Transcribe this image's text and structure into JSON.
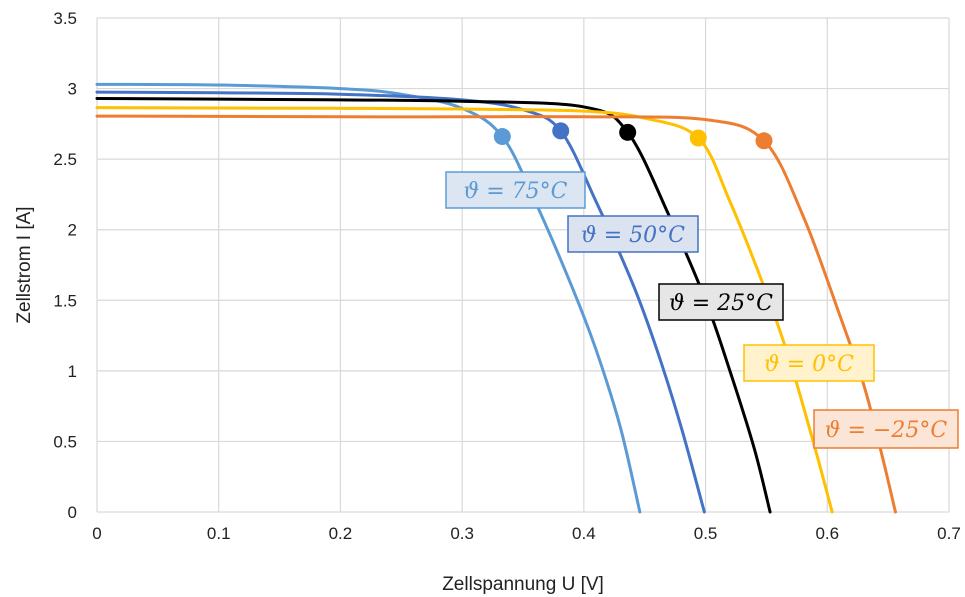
{
  "chart_data": {
    "type": "line",
    "xlabel": "Zellspannung U [V]",
    "ylabel": "Zellstrom I [A]",
    "xlim": [
      0,
      0.7
    ],
    "ylim": [
      0,
      3.5
    ],
    "x_ticks": [
      "0",
      "0.1",
      "0.2",
      "0.3",
      "0.4",
      "0.5",
      "0.6",
      "0.7"
    ],
    "y_ticks": [
      "0",
      "0.5",
      "1",
      "1.5",
      "2",
      "2.5",
      "3",
      "3.5"
    ],
    "grid": true,
    "legend": "none",
    "series": [
      {
        "name": "ϑ = 75°C",
        "color": "#5B9BD5",
        "label_bg": "#DCE6F2",
        "points": [
          [
            0,
            3.03
          ],
          [
            0.1,
            3.025
          ],
          [
            0.2,
            3.0
          ],
          [
            0.25,
            2.96
          ],
          [
            0.3,
            2.86
          ],
          [
            0.333,
            2.66
          ],
          [
            0.36,
            2.2
          ],
          [
            0.39,
            1.6
          ],
          [
            0.41,
            1.15
          ],
          [
            0.43,
            0.6
          ],
          [
            0.446,
            0
          ]
        ],
        "mpp": [
          0.333,
          2.66
        ]
      },
      {
        "name": "ϑ = 50°C",
        "color": "#4472C4",
        "label_bg": "#DCE3F0",
        "points": [
          [
            0,
            2.975
          ],
          [
            0.1,
            2.97
          ],
          [
            0.2,
            2.96
          ],
          [
            0.3,
            2.92
          ],
          [
            0.35,
            2.85
          ],
          [
            0.381,
            2.7
          ],
          [
            0.41,
            2.2
          ],
          [
            0.44,
            1.62
          ],
          [
            0.46,
            1.15
          ],
          [
            0.48,
            0.6
          ],
          [
            0.499,
            0
          ]
        ],
        "mpp": [
          0.381,
          2.7
        ]
      },
      {
        "name": "ϑ = 25°C",
        "color": "#000000",
        "label_bg": "#E6E6E6",
        "points": [
          [
            0,
            2.93
          ],
          [
            0.1,
            2.925
          ],
          [
            0.2,
            2.92
          ],
          [
            0.3,
            2.91
          ],
          [
            0.4,
            2.87
          ],
          [
            0.436,
            2.69
          ],
          [
            0.47,
            2.1
          ],
          [
            0.5,
            1.5
          ],
          [
            0.52,
            1.0
          ],
          [
            0.54,
            0.45
          ],
          [
            0.553,
            0
          ]
        ],
        "mpp": [
          0.436,
          2.69
        ]
      },
      {
        "name": "ϑ = 0°C",
        "color": "#FFC000",
        "label_bg": "#FFF2CC",
        "points": [
          [
            0,
            2.865
          ],
          [
            0.1,
            2.862
          ],
          [
            0.2,
            2.86
          ],
          [
            0.3,
            2.855
          ],
          [
            0.4,
            2.84
          ],
          [
            0.45,
            2.79
          ],
          [
            0.494,
            2.65
          ],
          [
            0.52,
            2.2
          ],
          [
            0.55,
            1.55
          ],
          [
            0.57,
            1.05
          ],
          [
            0.59,
            0.45
          ],
          [
            0.604,
            0
          ]
        ],
        "mpp": [
          0.494,
          2.65
        ]
      },
      {
        "name": "ϑ = −25°C",
        "color": "#ED7D31",
        "label_bg": "#FBE5D6",
        "points": [
          [
            0,
            2.805
          ],
          [
            0.1,
            2.803
          ],
          [
            0.2,
            2.8
          ],
          [
            0.3,
            2.8
          ],
          [
            0.4,
            2.8
          ],
          [
            0.5,
            2.78
          ],
          [
            0.548,
            2.63
          ],
          [
            0.58,
            2.1
          ],
          [
            0.61,
            1.4
          ],
          [
            0.63,
            0.9
          ],
          [
            0.645,
            0.4
          ],
          [
            0.656,
            0
          ]
        ],
        "mpp": [
          0.548,
          2.63
        ]
      }
    ]
  }
}
